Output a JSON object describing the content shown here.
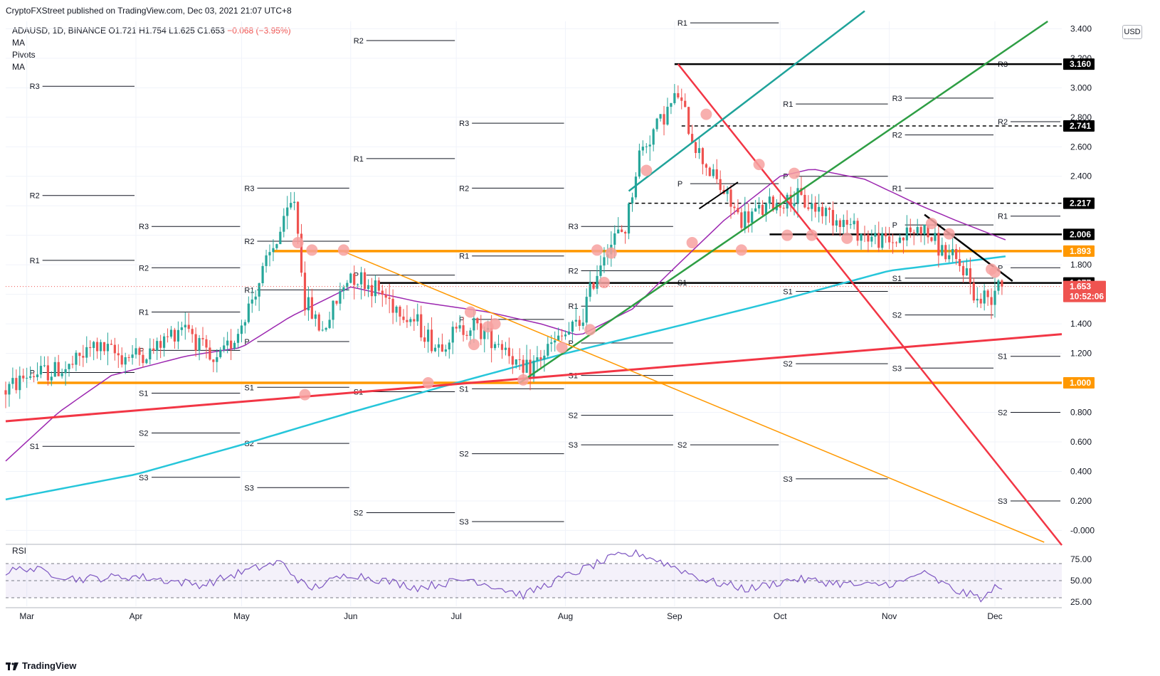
{
  "header": {
    "published": "CryptoFXStreet published on TradingView.com, Dec 03, 2021 21:07 UTC+8"
  },
  "legend": {
    "symbol": "ADAUSD, 1D, BINANCE",
    "ohlc": "O1.721 H1.754 L1.625 C1.653",
    "change": "−0.068 (−3.95%)",
    "indicators": [
      "MA",
      "Pivots",
      "MA"
    ]
  },
  "currency": "USD",
  "footer": {
    "brand": "TradingView"
  },
  "colors": {
    "bull": "#26a69a",
    "bear": "#ef5350",
    "ma_long": "#26c6da",
    "ma_short": "#9c27b0",
    "orange": "#ff9800",
    "red": "#f23645",
    "green": "#2e9e44",
    "teal": "#1fa39a",
    "pivot_circle": "#f7a1a0"
  },
  "chart_data": {
    "type": "candlestick",
    "symbol": "ADAUSD",
    "timeframe": "1D",
    "x_range": [
      "2021-02-23",
      "2021-12-20"
    ],
    "y_range": [
      -0.08,
      3.45
    ],
    "y_ticks": [
      "3.400",
      "3.200",
      "3.000",
      "2.800",
      "2.600",
      "2.400",
      "2.200",
      "2.000",
      "1.800",
      "1.600",
      "1.400",
      "1.200",
      "1.000",
      "0.800",
      "0.600",
      "0.400",
      "0.200",
      "-0.000"
    ],
    "month_labels": [
      {
        "label": "Mar",
        "date": "2021-03-01"
      },
      {
        "label": "Apr",
        "date": "2021-04-01"
      },
      {
        "label": "May",
        "date": "2021-05-01"
      },
      {
        "label": "Jun",
        "date": "2021-06-01"
      },
      {
        "label": "Jul",
        "date": "2021-07-01"
      },
      {
        "label": "Aug",
        "date": "2021-08-01"
      },
      {
        "label": "Sep",
        "date": "2021-09-01"
      },
      {
        "label": "Oct",
        "date": "2021-10-01"
      },
      {
        "label": "Nov",
        "date": "2021-11-01"
      },
      {
        "label": "Dec",
        "date": "2021-12-01"
      }
    ],
    "last_price": {
      "value": 1.653,
      "label": "1.653",
      "countdown": "10:52:06"
    },
    "price_tags": [
      {
        "value": 3.16,
        "label": "3.160",
        "color": "#000000"
      },
      {
        "value": 2.741,
        "label": "2.741",
        "color": "#000000"
      },
      {
        "value": 2.217,
        "label": "2.217",
        "color": "#000000"
      },
      {
        "value": 2.006,
        "label": "2.006",
        "color": "#000000"
      },
      {
        "value": 1.893,
        "label": "1.893",
        "color": "#ff9800"
      },
      {
        "value": 1.677,
        "label": "1.677",
        "color": "#000000"
      },
      {
        "value": 1.0,
        "label": "1.000",
        "color": "#ff9800"
      }
    ],
    "horizontal_lines": [
      {
        "value": 3.16,
        "from": "2021-09-01",
        "to": "2021-12-20",
        "color": "#000000",
        "width": 2.5,
        "dash": false
      },
      {
        "value": 2.741,
        "from": "2021-09-03",
        "to": "2021-12-20",
        "color": "#000000",
        "width": 1.5,
        "dash": true
      },
      {
        "value": 2.217,
        "from": "2021-08-19",
        "to": "2021-12-20",
        "color": "#000000",
        "width": 1.5,
        "dash": true
      },
      {
        "value": 2.006,
        "from": "2021-09-28",
        "to": "2021-12-20",
        "color": "#000000",
        "width": 2.5,
        "dash": false
      },
      {
        "value": 1.893,
        "from": "2021-05-10",
        "to": "2021-12-20",
        "color": "#ff9800",
        "width": 3.5,
        "dash": false
      },
      {
        "value": 1.677,
        "from": "2021-06-09",
        "to": "2021-12-20",
        "color": "#000000",
        "width": 2.5,
        "dash": false
      },
      {
        "value": 1.0,
        "from": "2021-03-04",
        "to": "2021-12-20",
        "color": "#ff9800",
        "width": 3.5,
        "dash": false
      }
    ],
    "trend_lines": [
      {
        "from": [
          "2021-02-23",
          0.74
        ],
        "to": [
          "2021-12-20",
          1.33
        ],
        "color": "#f23645",
        "width": 3
      },
      {
        "from": [
          "2021-09-02",
          3.16
        ],
        "to": [
          "2021-12-20",
          -0.1
        ],
        "color": "#f23645",
        "width": 2.5
      },
      {
        "from": [
          "2021-07-19",
          1.0
        ],
        "to": [
          "2021-12-16",
          3.45
        ],
        "color": "#2e9e44",
        "width": 2.5
      },
      {
        "from": [
          "2021-08-19",
          2.3
        ],
        "to": [
          "2021-10-25",
          3.52
        ],
        "color": "#1fa39a",
        "width": 2.5
      },
      {
        "from": [
          "2021-05-29",
          1.9
        ],
        "to": [
          "2021-12-15",
          -0.08
        ],
        "color": "#ff9800",
        "width": 1.5
      },
      {
        "from": [
          "2021-11-11",
          2.14
        ],
        "to": [
          "2021-12-06",
          1.69
        ],
        "color": "#000000",
        "width": 2.5
      },
      {
        "from": [
          "2021-09-08",
          2.18
        ],
        "to": [
          "2021-09-19",
          2.36
        ],
        "color": "#000000",
        "width": 2
      }
    ],
    "pivot_labels_left": [
      {
        "label": "R3",
        "value": 3.01,
        "from": "2021-03-01",
        "to": "2021-04-01"
      },
      {
        "label": "R2",
        "value": 2.27,
        "from": "2021-03-01",
        "to": "2021-04-01"
      },
      {
        "label": "R1",
        "value": 1.83,
        "from": "2021-03-01",
        "to": "2021-04-01"
      },
      {
        "label": "P",
        "value": 1.07,
        "from": "2021-03-01",
        "to": "2021-04-01"
      },
      {
        "label": "S1",
        "value": 0.57,
        "from": "2021-03-01",
        "to": "2021-04-01"
      },
      {
        "label": "R3",
        "value": 2.06,
        "from": "2021-04-01",
        "to": "2021-05-01"
      },
      {
        "label": "R2",
        "value": 1.78,
        "from": "2021-04-01",
        "to": "2021-05-01"
      },
      {
        "label": "R1",
        "value": 1.48,
        "from": "2021-04-01",
        "to": "2021-05-01"
      },
      {
        "label": "P",
        "value": 1.22,
        "from": "2021-04-01",
        "to": "2021-05-01"
      },
      {
        "label": "S1",
        "value": 0.93,
        "from": "2021-04-01",
        "to": "2021-05-01"
      },
      {
        "label": "S2",
        "value": 0.66,
        "from": "2021-04-01",
        "to": "2021-05-01"
      },
      {
        "label": "S3",
        "value": 0.36,
        "from": "2021-04-01",
        "to": "2021-05-01"
      },
      {
        "label": "R3",
        "value": 2.32,
        "from": "2021-05-01",
        "to": "2021-06-01"
      },
      {
        "label": "R2",
        "value": 1.96,
        "from": "2021-05-01",
        "to": "2021-06-01"
      },
      {
        "label": "R1",
        "value": 1.63,
        "from": "2021-05-01",
        "to": "2021-06-01"
      },
      {
        "label": "P",
        "value": 1.28,
        "from": "2021-05-01",
        "to": "2021-06-01"
      },
      {
        "label": "S1",
        "value": 0.97,
        "from": "2021-05-01",
        "to": "2021-06-01"
      },
      {
        "label": "S2",
        "value": 0.59,
        "from": "2021-05-01",
        "to": "2021-06-01"
      },
      {
        "label": "S3",
        "value": 0.29,
        "from": "2021-05-01",
        "to": "2021-06-01"
      },
      {
        "label": "R2",
        "value": 3.32,
        "from": "2021-06-01",
        "to": "2021-07-01"
      },
      {
        "label": "R1",
        "value": 2.52,
        "from": "2021-06-01",
        "to": "2021-07-01"
      },
      {
        "label": "P",
        "value": 1.73,
        "from": "2021-06-01",
        "to": "2021-07-01"
      },
      {
        "label": "S1",
        "value": 0.94,
        "from": "2021-06-01",
        "to": "2021-07-01"
      },
      {
        "label": "S2",
        "value": 0.12,
        "from": "2021-06-01",
        "to": "2021-07-01"
      },
      {
        "label": "R3",
        "value": 2.76,
        "from": "2021-07-01",
        "to": "2021-08-01"
      },
      {
        "label": "R2",
        "value": 2.32,
        "from": "2021-07-01",
        "to": "2021-08-01"
      },
      {
        "label": "R1",
        "value": 1.86,
        "from": "2021-07-01",
        "to": "2021-08-01"
      },
      {
        "label": "P",
        "value": 1.43,
        "from": "2021-07-01",
        "to": "2021-08-01"
      },
      {
        "label": "S1",
        "value": 0.96,
        "from": "2021-07-01",
        "to": "2021-08-01"
      },
      {
        "label": "S2",
        "value": 0.52,
        "from": "2021-07-01",
        "to": "2021-08-01"
      },
      {
        "label": "S3",
        "value": 0.06,
        "from": "2021-07-01",
        "to": "2021-08-01"
      },
      {
        "label": "R3",
        "value": 2.06,
        "from": "2021-08-01",
        "to": "2021-09-01"
      },
      {
        "label": "R2",
        "value": 1.76,
        "from": "2021-08-01",
        "to": "2021-09-01"
      },
      {
        "label": "R1",
        "value": 1.52,
        "from": "2021-08-01",
        "to": "2021-09-01"
      },
      {
        "label": "P",
        "value": 1.27,
        "from": "2021-08-01",
        "to": "2021-09-01"
      },
      {
        "label": "S1",
        "value": 1.05,
        "from": "2021-08-01",
        "to": "2021-09-01"
      },
      {
        "label": "S2",
        "value": 0.78,
        "from": "2021-08-01",
        "to": "2021-09-01"
      },
      {
        "label": "S3",
        "value": 0.58,
        "from": "2021-08-01",
        "to": "2021-09-01"
      },
      {
        "label": "R1",
        "value": 3.44,
        "from": "2021-09-01",
        "to": "2021-10-01"
      },
      {
        "label": "P",
        "value": 2.35,
        "from": "2021-09-01",
        "to": "2021-10-01"
      },
      {
        "label": "S1",
        "value": 1.68,
        "from": "2021-09-01",
        "to": "2021-10-01"
      },
      {
        "label": "S2",
        "value": 0.58,
        "from": "2021-09-01",
        "to": "2021-10-01"
      },
      {
        "label": "R1",
        "value": 2.89,
        "from": "2021-10-01",
        "to": "2021-11-01"
      },
      {
        "label": "P",
        "value": 2.4,
        "from": "2021-10-01",
        "to": "2021-11-01"
      },
      {
        "label": "S1",
        "value": 1.62,
        "from": "2021-10-01",
        "to": "2021-11-01"
      },
      {
        "label": "S2",
        "value": 1.13,
        "from": "2021-10-01",
        "to": "2021-11-01"
      },
      {
        "label": "S3",
        "value": 0.35,
        "from": "2021-10-01",
        "to": "2021-11-01"
      },
      {
        "label": "R3",
        "value": 2.93,
        "from": "2021-11-01",
        "to": "2021-12-01"
      },
      {
        "label": "R2",
        "value": 2.68,
        "from": "2021-11-01",
        "to": "2021-12-01"
      },
      {
        "label": "R1",
        "value": 2.32,
        "from": "2021-11-01",
        "to": "2021-12-01"
      },
      {
        "label": "P",
        "value": 2.07,
        "from": "2021-11-01",
        "to": "2021-12-01"
      },
      {
        "label": "S1",
        "value": 1.71,
        "from": "2021-11-01",
        "to": "2021-12-01"
      },
      {
        "label": "S2",
        "value": 1.46,
        "from": "2021-11-01",
        "to": "2021-12-01"
      },
      {
        "label": "S3",
        "value": 1.1,
        "from": "2021-11-01",
        "to": "2021-12-01"
      },
      {
        "label": "R3",
        "value": 3.16,
        "from": "2021-12-01",
        "to": "2021-12-20"
      },
      {
        "label": "R2",
        "value": 2.77,
        "from": "2021-12-01",
        "to": "2021-12-20"
      },
      {
        "label": "R1",
        "value": 2.13,
        "from": "2021-12-01",
        "to": "2021-12-20"
      },
      {
        "label": "P",
        "value": 1.78,
        "from": "2021-12-01",
        "to": "2021-12-20"
      },
      {
        "label": "S1",
        "value": 1.18,
        "from": "2021-12-01",
        "to": "2021-12-20"
      },
      {
        "label": "S2",
        "value": 0.8,
        "from": "2021-12-01",
        "to": "2021-12-20"
      },
      {
        "label": "S3",
        "value": 0.2,
        "from": "2021-12-01",
        "to": "2021-12-20"
      }
    ],
    "price_keypoints": [
      [
        "2021-02-23",
        0.95
      ],
      [
        "2021-03-01",
        1.05
      ],
      [
        "2021-03-13",
        1.1
      ],
      [
        "2021-03-20",
        1.25
      ],
      [
        "2021-03-28",
        1.18
      ],
      [
        "2021-04-05",
        1.2
      ],
      [
        "2021-04-15",
        1.42
      ],
      [
        "2021-04-23",
        1.1
      ],
      [
        "2021-04-30",
        1.35
      ],
      [
        "2021-05-08",
        1.8
      ],
      [
        "2021-05-16",
        2.25
      ],
      [
        "2021-05-19",
        1.55
      ],
      [
        "2021-05-24",
        1.35
      ],
      [
        "2021-06-01",
        1.75
      ],
      [
        "2021-06-09",
        1.62
      ],
      [
        "2021-06-20",
        1.4
      ],
      [
        "2021-06-25",
        1.25
      ],
      [
        "2021-07-05",
        1.4
      ],
      [
        "2021-07-15",
        1.25
      ],
      [
        "2021-07-20",
        1.05
      ],
      [
        "2021-07-28",
        1.25
      ],
      [
        "2021-08-05",
        1.4
      ],
      [
        "2021-08-12",
        1.9
      ],
      [
        "2021-08-18",
        2.05
      ],
      [
        "2021-08-22",
        2.55
      ],
      [
        "2021-08-27",
        2.75
      ],
      [
        "2021-09-02",
        2.95
      ],
      [
        "2021-09-07",
        2.6
      ],
      [
        "2021-09-12",
        2.4
      ],
      [
        "2021-09-20",
        2.1
      ],
      [
        "2021-09-28",
        2.2
      ],
      [
        "2021-10-05",
        2.25
      ],
      [
        "2021-10-15",
        2.15
      ],
      [
        "2021-10-25",
        2.0
      ],
      [
        "2021-11-01",
        1.95
      ],
      [
        "2021-11-10",
        2.05
      ],
      [
        "2021-11-18",
        1.85
      ],
      [
        "2021-11-23",
        1.75
      ],
      [
        "2021-11-26",
        1.55
      ],
      [
        "2021-11-30",
        1.6
      ],
      [
        "2021-12-02",
        1.72
      ],
      [
        "2021-12-03",
        1.653
      ]
    ],
    "ma_long_keypoints": [
      [
        "2021-02-23",
        0.21
      ],
      [
        "2021-04-01",
        0.38
      ],
      [
        "2021-05-01",
        0.58
      ],
      [
        "2021-06-01",
        0.8
      ],
      [
        "2021-07-01",
        1.0
      ],
      [
        "2021-08-01",
        1.2
      ],
      [
        "2021-09-01",
        1.38
      ],
      [
        "2021-10-01",
        1.56
      ],
      [
        "2021-11-01",
        1.76
      ],
      [
        "2021-12-05",
        1.86
      ]
    ],
    "ma_short_keypoints": [
      [
        "2021-02-23",
        0.47
      ],
      [
        "2021-03-10",
        0.8
      ],
      [
        "2021-03-25",
        1.05
      ],
      [
        "2021-04-15",
        1.18
      ],
      [
        "2021-05-01",
        1.24
      ],
      [
        "2021-05-15",
        1.45
      ],
      [
        "2021-06-01",
        1.65
      ],
      [
        "2021-06-20",
        1.55
      ],
      [
        "2021-07-10",
        1.48
      ],
      [
        "2021-07-25",
        1.4
      ],
      [
        "2021-08-05",
        1.32
      ],
      [
        "2021-08-20",
        1.5
      ],
      [
        "2021-09-01",
        1.78
      ],
      [
        "2021-09-15",
        2.1
      ],
      [
        "2021-10-01",
        2.4
      ],
      [
        "2021-10-10",
        2.45
      ],
      [
        "2021-10-25",
        2.38
      ],
      [
        "2021-11-10",
        2.2
      ],
      [
        "2021-11-20",
        2.1
      ],
      [
        "2021-12-05",
        1.96
      ]
    ],
    "touch_points": [
      [
        "2021-05-17",
        1.95
      ],
      [
        "2021-05-19",
        0.92
      ],
      [
        "2021-05-21",
        1.9
      ],
      [
        "2021-05-30",
        1.9
      ],
      [
        "2021-06-23",
        1.0
      ],
      [
        "2021-07-05",
        1.48
      ],
      [
        "2021-07-06",
        1.26
      ],
      [
        "2021-07-10",
        1.38
      ],
      [
        "2021-07-12",
        1.4
      ],
      [
        "2021-07-20",
        1.02
      ],
      [
        "2021-07-31",
        1.24
      ],
      [
        "2021-08-08",
        1.36
      ],
      [
        "2021-08-10",
        1.9
      ],
      [
        "2021-08-12",
        1.68
      ],
      [
        "2021-08-14",
        1.88
      ],
      [
        "2021-08-24",
        2.44
      ],
      [
        "2021-09-06",
        1.95
      ],
      [
        "2021-09-10",
        2.82
      ],
      [
        "2021-09-20",
        1.9
      ],
      [
        "2021-09-25",
        2.48
      ],
      [
        "2021-10-03",
        2.0
      ],
      [
        "2021-10-05",
        2.42
      ],
      [
        "2021-10-10",
        2.0
      ],
      [
        "2021-10-20",
        1.98
      ],
      [
        "2021-11-13",
        2.08
      ],
      [
        "2021-11-18",
        2.01
      ],
      [
        "2021-11-30",
        1.77
      ],
      [
        "2021-12-01",
        1.75
      ]
    ],
    "rsi": {
      "label": "RSI",
      "ticks": [
        "75.00",
        "50.00",
        "25.00"
      ],
      "bands": [
        70,
        50,
        30
      ],
      "keypoints": [
        [
          "2021-02-23",
          60
        ],
        [
          "2021-03-01",
          65
        ],
        [
          "2021-03-15",
          52
        ],
        [
          "2021-04-01",
          55
        ],
        [
          "2021-04-20",
          45
        ],
        [
          "2021-05-01",
          60
        ],
        [
          "2021-05-12",
          72
        ],
        [
          "2021-05-20",
          40
        ],
        [
          "2021-06-01",
          58
        ],
        [
          "2021-06-20",
          42
        ],
        [
          "2021-07-05",
          52
        ],
        [
          "2021-07-20",
          33
        ],
        [
          "2021-08-01",
          55
        ],
        [
          "2021-08-15",
          78
        ],
        [
          "2021-08-22",
          82
        ],
        [
          "2021-09-01",
          66
        ],
        [
          "2021-09-10",
          50
        ],
        [
          "2021-09-22",
          40
        ],
        [
          "2021-10-05",
          52
        ],
        [
          "2021-10-25",
          44
        ],
        [
          "2021-11-05",
          48
        ],
        [
          "2021-11-10",
          60
        ],
        [
          "2021-11-20",
          38
        ],
        [
          "2021-11-28",
          29
        ],
        [
          "2021-12-02",
          46
        ],
        [
          "2021-12-03",
          42
        ]
      ]
    }
  }
}
